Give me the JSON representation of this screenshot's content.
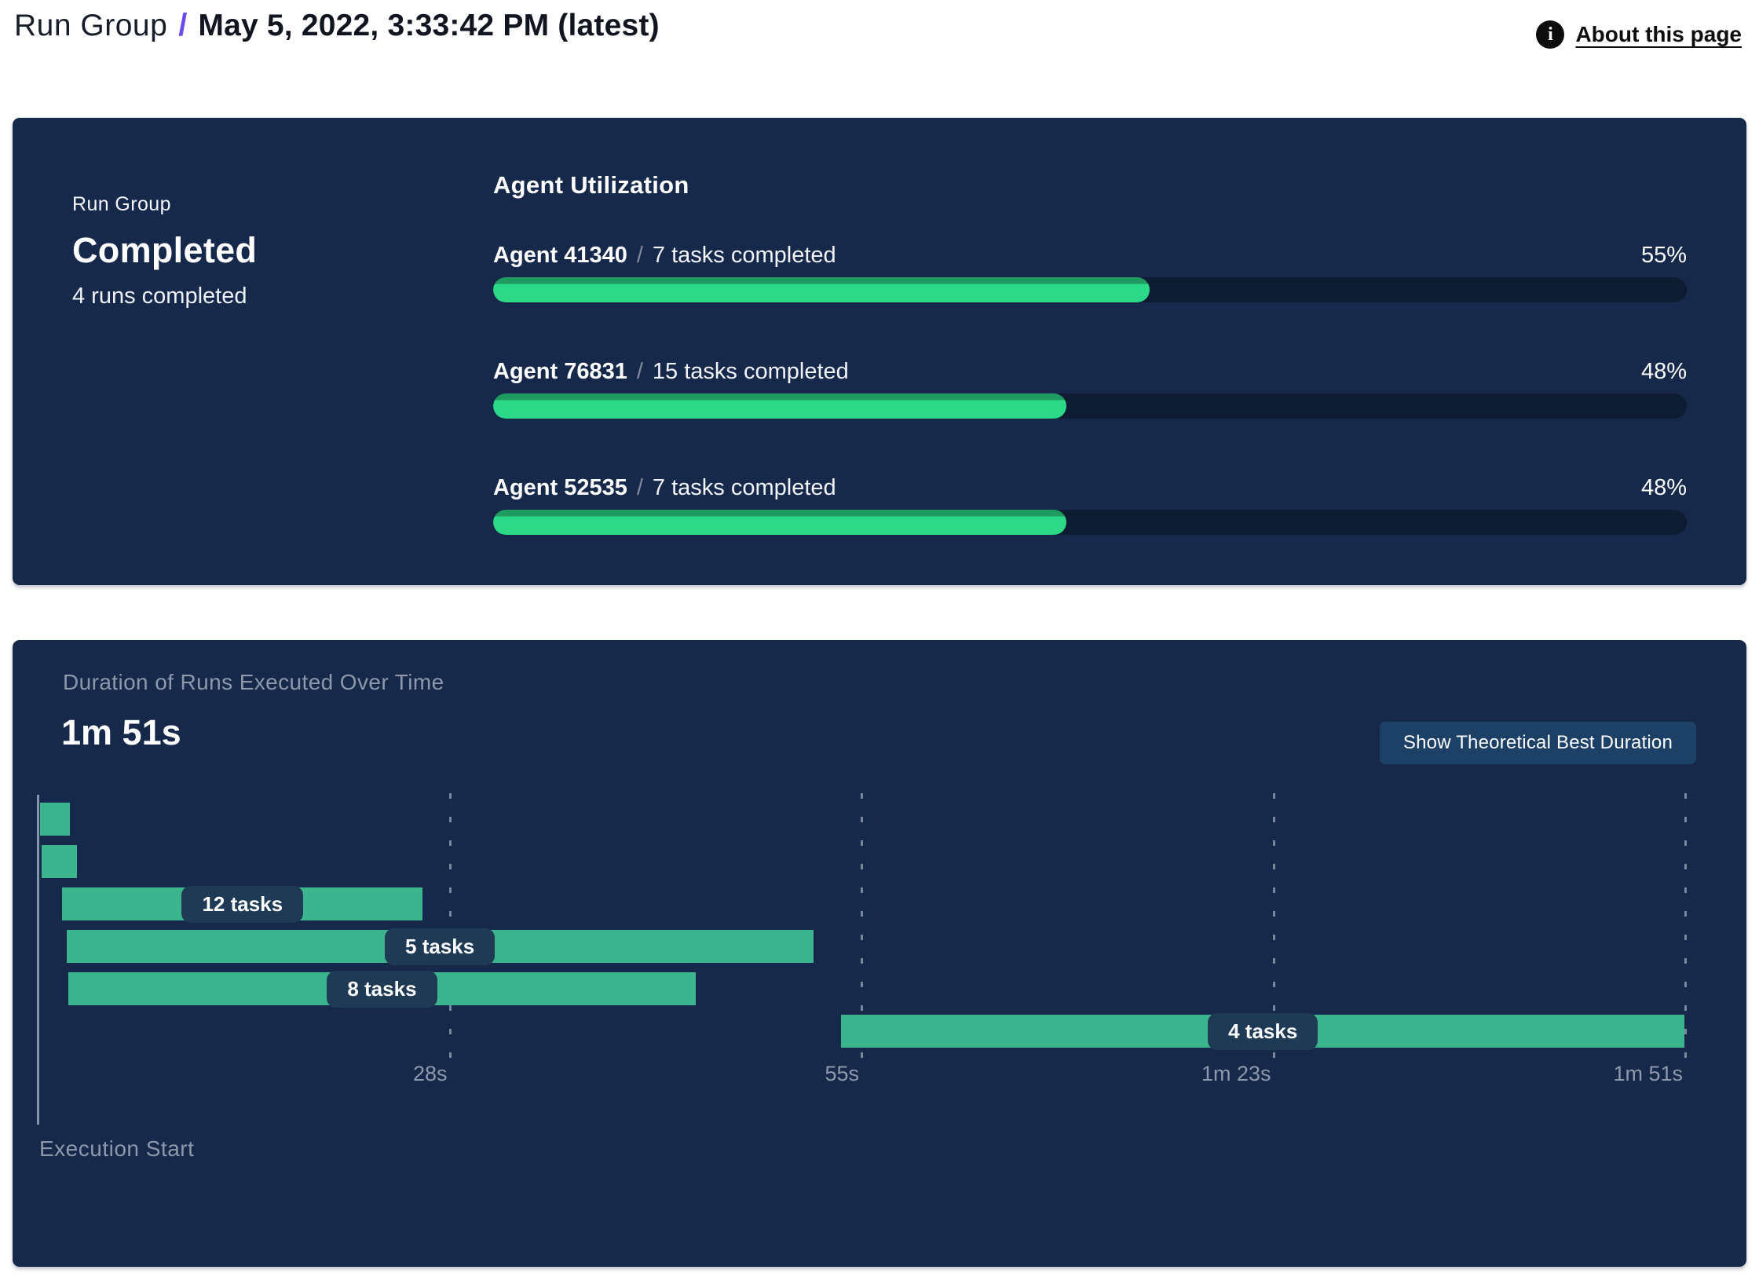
{
  "header": {
    "breadcrumb_root": "Run Group",
    "separator": "/",
    "title": "May 5, 2022, 3:33:42 PM (latest)",
    "info_icon_glyph": "i",
    "about_link": "About this page"
  },
  "colors": {
    "panel_bg": "#16294a",
    "track": "#0e1c31",
    "green_bright": "#2bd988",
    "green_dark": "#1f9a61",
    "gantt_green": "#3cb48e",
    "pill_bg": "#1e3a55",
    "muted": "#8d99ab",
    "button_bg": "#1d4166",
    "accent": "#6b4bef"
  },
  "status_panel": {
    "label": "Run Group",
    "status": "Completed",
    "sub": "4 runs completed",
    "utilization_title": "Agent Utilization",
    "agent_separator": "/",
    "agents": [
      {
        "name": "Agent 41340",
        "tasks": "7 tasks completed",
        "percent": 55,
        "percent_label": "55%"
      },
      {
        "name": "Agent 76831",
        "tasks": "15 tasks completed",
        "percent": 48,
        "percent_label": "48%"
      },
      {
        "name": "Agent 52535",
        "tasks": "7 tasks completed",
        "percent": 48,
        "percent_label": "48%"
      }
    ]
  },
  "duration_panel": {
    "title": "Duration of Runs Executed Over Time",
    "total": "1m 51s",
    "button": "Show Theoretical Best Duration",
    "execution_start": "Execution Start",
    "axis": {
      "max_seconds": 111,
      "ticks": [
        {
          "label": "28s",
          "seconds": 27.75
        },
        {
          "label": "55s",
          "seconds": 55.5
        },
        {
          "label": "1m 23s",
          "seconds": 83.25
        },
        {
          "label": "1m 51s",
          "seconds": 111
        }
      ]
    },
    "runs": [
      {
        "start": 0.2,
        "end": 2.2,
        "label": ""
      },
      {
        "start": 0.3,
        "end": 2.7,
        "label": ""
      },
      {
        "start": 1.7,
        "end": 26,
        "label": "12 tasks"
      },
      {
        "start": 2.0,
        "end": 52.3,
        "label": "5 tasks"
      },
      {
        "start": 2.1,
        "end": 44.4,
        "label": "8 tasks"
      },
      {
        "start": 54.2,
        "end": 111,
        "label": "4 tasks"
      }
    ]
  },
  "chart_data": [
    {
      "type": "bar",
      "title": "Agent Utilization",
      "categories": [
        "Agent 41340",
        "Agent 76831",
        "Agent 52535"
      ],
      "values": [
        55,
        48,
        48
      ],
      "unit": "%",
      "annotations": [
        "7 tasks completed",
        "15 tasks completed",
        "7 tasks completed"
      ],
      "xlim": [
        0,
        100
      ],
      "orientation": "horizontal"
    },
    {
      "type": "bar",
      "subtype": "gantt",
      "title": "Duration of Runs Executed Over Time",
      "total_duration": "1m 51s",
      "x_unit": "seconds",
      "xlim": [
        0,
        111
      ],
      "x_tick_labels": [
        "28s",
        "55s",
        "1m 23s",
        "1m 51s"
      ],
      "xlabel": "Execution Start",
      "bars": [
        {
          "start": 0.2,
          "end": 2.2,
          "tasks": null
        },
        {
          "start": 0.3,
          "end": 2.7,
          "tasks": null
        },
        {
          "start": 1.7,
          "end": 26,
          "tasks": 12
        },
        {
          "start": 2.0,
          "end": 52.3,
          "tasks": 5
        },
        {
          "start": 2.1,
          "end": 44.4,
          "tasks": 8
        },
        {
          "start": 54.2,
          "end": 111,
          "tasks": 4
        }
      ]
    }
  ]
}
